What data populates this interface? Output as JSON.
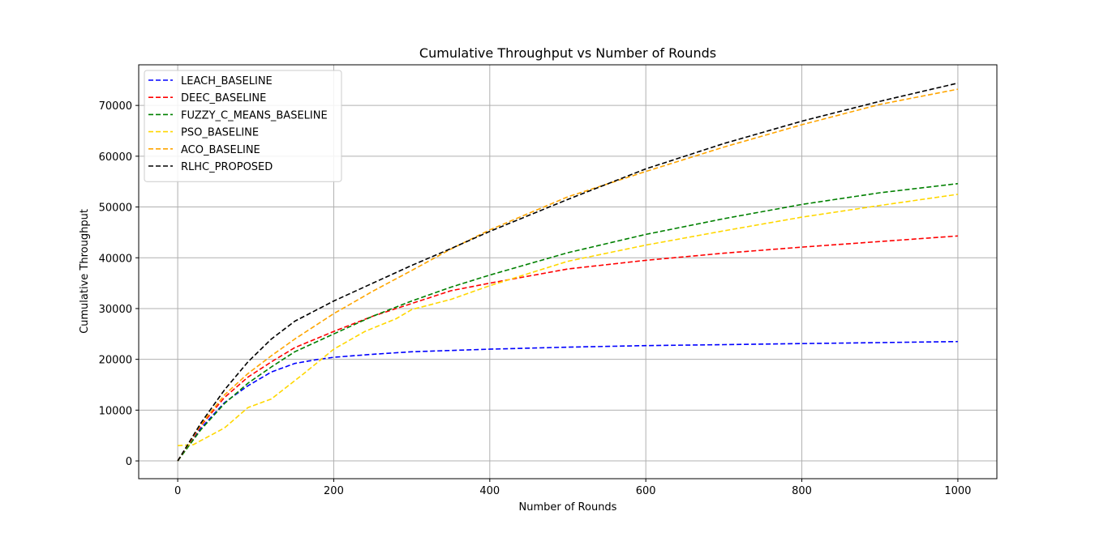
{
  "chart_data": {
    "type": "line",
    "title": "Cumulative Throughput vs Number of Rounds",
    "xlabel": "Number of Rounds",
    "ylabel": "Cumulative Throughput",
    "xlim": [
      -50,
      1050
    ],
    "ylim": [
      -3500,
      78000
    ],
    "xticks": [
      0,
      200,
      400,
      600,
      800,
      1000
    ],
    "yticks": [
      0,
      10000,
      20000,
      30000,
      40000,
      50000,
      60000,
      70000
    ],
    "grid": true,
    "legend_position": "top-left",
    "line_style": "dashed",
    "series": [
      {
        "name": "LEACH_BASELINE",
        "color": "#0000ff",
        "x": [
          0,
          30,
          60,
          90,
          120,
          150,
          180,
          200,
          250,
          300,
          400,
          500,
          600,
          700,
          800,
          900,
          1000
        ],
        "y": [
          0,
          6500,
          11500,
          14800,
          17500,
          19200,
          20000,
          20400,
          21000,
          21500,
          22000,
          22400,
          22700,
          22900,
          23100,
          23300,
          23500
        ]
      },
      {
        "name": "DEEC_BASELINE",
        "color": "#ff0000",
        "x": [
          0,
          30,
          60,
          90,
          120,
          150,
          200,
          250,
          300,
          350,
          400,
          500,
          600,
          700,
          800,
          900,
          1000
        ],
        "y": [
          0,
          7000,
          12500,
          16500,
          19500,
          22300,
          25500,
          28500,
          31000,
          33500,
          35000,
          37800,
          39500,
          40900,
          42100,
          43200,
          44300
        ]
      },
      {
        "name": "FUZZY_C_MEANS_BASELINE",
        "color": "#008000",
        "x": [
          0,
          30,
          60,
          90,
          120,
          150,
          200,
          250,
          300,
          350,
          400,
          500,
          600,
          700,
          800,
          900,
          1000
        ],
        "y": [
          0,
          6200,
          11300,
          15300,
          18500,
          21500,
          25000,
          28500,
          31500,
          34200,
          36600,
          41000,
          44600,
          47700,
          50500,
          52800,
          54600
        ]
      },
      {
        "name": "PSO_BASELINE",
        "color": "#ffd700",
        "x": [
          0,
          20,
          60,
          90,
          120,
          160,
          200,
          240,
          280,
          300,
          350,
          400,
          500,
          600,
          700,
          800,
          900,
          1000
        ],
        "y": [
          3000,
          3200,
          6500,
          10500,
          12200,
          17000,
          22000,
          25500,
          28000,
          29800,
          31800,
          34500,
          39300,
          42500,
          45300,
          48000,
          50300,
          52500
        ]
      },
      {
        "name": "ACO_BASELINE",
        "color": "#ffa500",
        "x": [
          0,
          30,
          60,
          90,
          120,
          150,
          200,
          250,
          300,
          350,
          400,
          500,
          600,
          700,
          800,
          900,
          1000
        ],
        "y": [
          0,
          7200,
          13000,
          17200,
          20700,
          24000,
          29000,
          33400,
          37500,
          41700,
          45500,
          52000,
          57000,
          61800,
          66200,
          70200,
          73200
        ]
      },
      {
        "name": "RLHC_PROPOSED",
        "color": "#000000",
        "x": [
          0,
          30,
          60,
          90,
          120,
          150,
          200,
          250,
          300,
          350,
          400,
          500,
          600,
          700,
          800,
          900,
          1000
        ],
        "y": [
          0,
          7500,
          14000,
          19500,
          24000,
          27500,
          31500,
          35000,
          38500,
          41800,
          45200,
          51500,
          57500,
          62500,
          66900,
          70800,
          74400
        ]
      }
    ]
  }
}
